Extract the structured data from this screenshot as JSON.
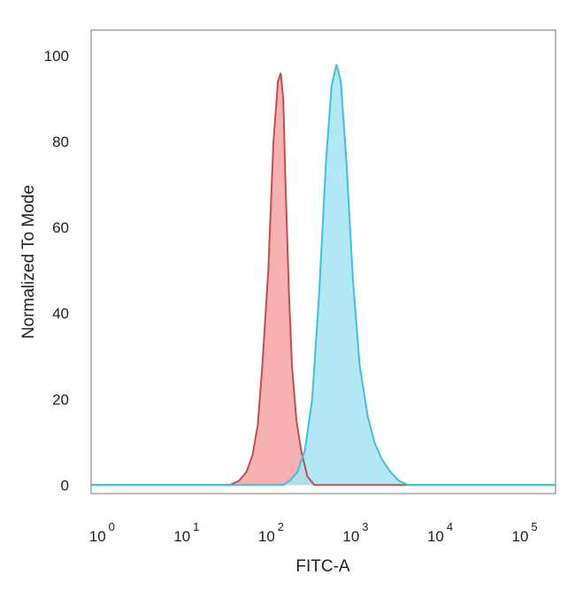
{
  "chart_data": {
    "type": "area",
    "title": "",
    "xlabel": "FITC-A",
    "ylabel": "Normalized To Mode",
    "x_scale": "log",
    "xlim": [
      0.8,
      250000
    ],
    "ylim": [
      -2,
      106
    ],
    "y_ticks": [
      0,
      20,
      40,
      60,
      80,
      100
    ],
    "x_ticks": [
      {
        "value": 1,
        "base": "10",
        "exp": "0"
      },
      {
        "value": 10,
        "base": "10",
        "exp": "1"
      },
      {
        "value": 100,
        "base": "10",
        "exp": "2"
      },
      {
        "value": 1000,
        "base": "10",
        "exp": "3"
      },
      {
        "value": 10000,
        "base": "10",
        "exp": "4"
      },
      {
        "value": 100000,
        "base": "10",
        "exp": "5"
      }
    ],
    "grid": false,
    "legend": "none",
    "series": [
      {
        "fill": "#f7a3a3",
        "stroke": "#c0504d",
        "points": [
          [
            0.8,
            0
          ],
          [
            35,
            0
          ],
          [
            45,
            1
          ],
          [
            55,
            3
          ],
          [
            65,
            7
          ],
          [
            75,
            14
          ],
          [
            85,
            28
          ],
          [
            100,
            50
          ],
          [
            115,
            80
          ],
          [
            130,
            94
          ],
          [
            140,
            96
          ],
          [
            150,
            90
          ],
          [
            160,
            70
          ],
          [
            175,
            45
          ],
          [
            190,
            28
          ],
          [
            215,
            15
          ],
          [
            245,
            8
          ],
          [
            290,
            2
          ],
          [
            350,
            0
          ],
          [
            250000,
            0
          ]
        ]
      },
      {
        "fill": "#a4e3f5",
        "stroke": "#3fc1d6",
        "points": [
          [
            0.8,
            0
          ],
          [
            150,
            0
          ],
          [
            180,
            1
          ],
          [
            220,
            3
          ],
          [
            270,
            8
          ],
          [
            330,
            20
          ],
          [
            400,
            45
          ],
          [
            480,
            75
          ],
          [
            560,
            93
          ],
          [
            640,
            98
          ],
          [
            720,
            94
          ],
          [
            840,
            75
          ],
          [
            1000,
            48
          ],
          [
            1200,
            28
          ],
          [
            1500,
            16
          ],
          [
            1800,
            10
          ],
          [
            2200,
            6
          ],
          [
            2800,
            3
          ],
          [
            3500,
            1
          ],
          [
            4500,
            0
          ],
          [
            250000,
            0
          ]
        ]
      }
    ]
  }
}
